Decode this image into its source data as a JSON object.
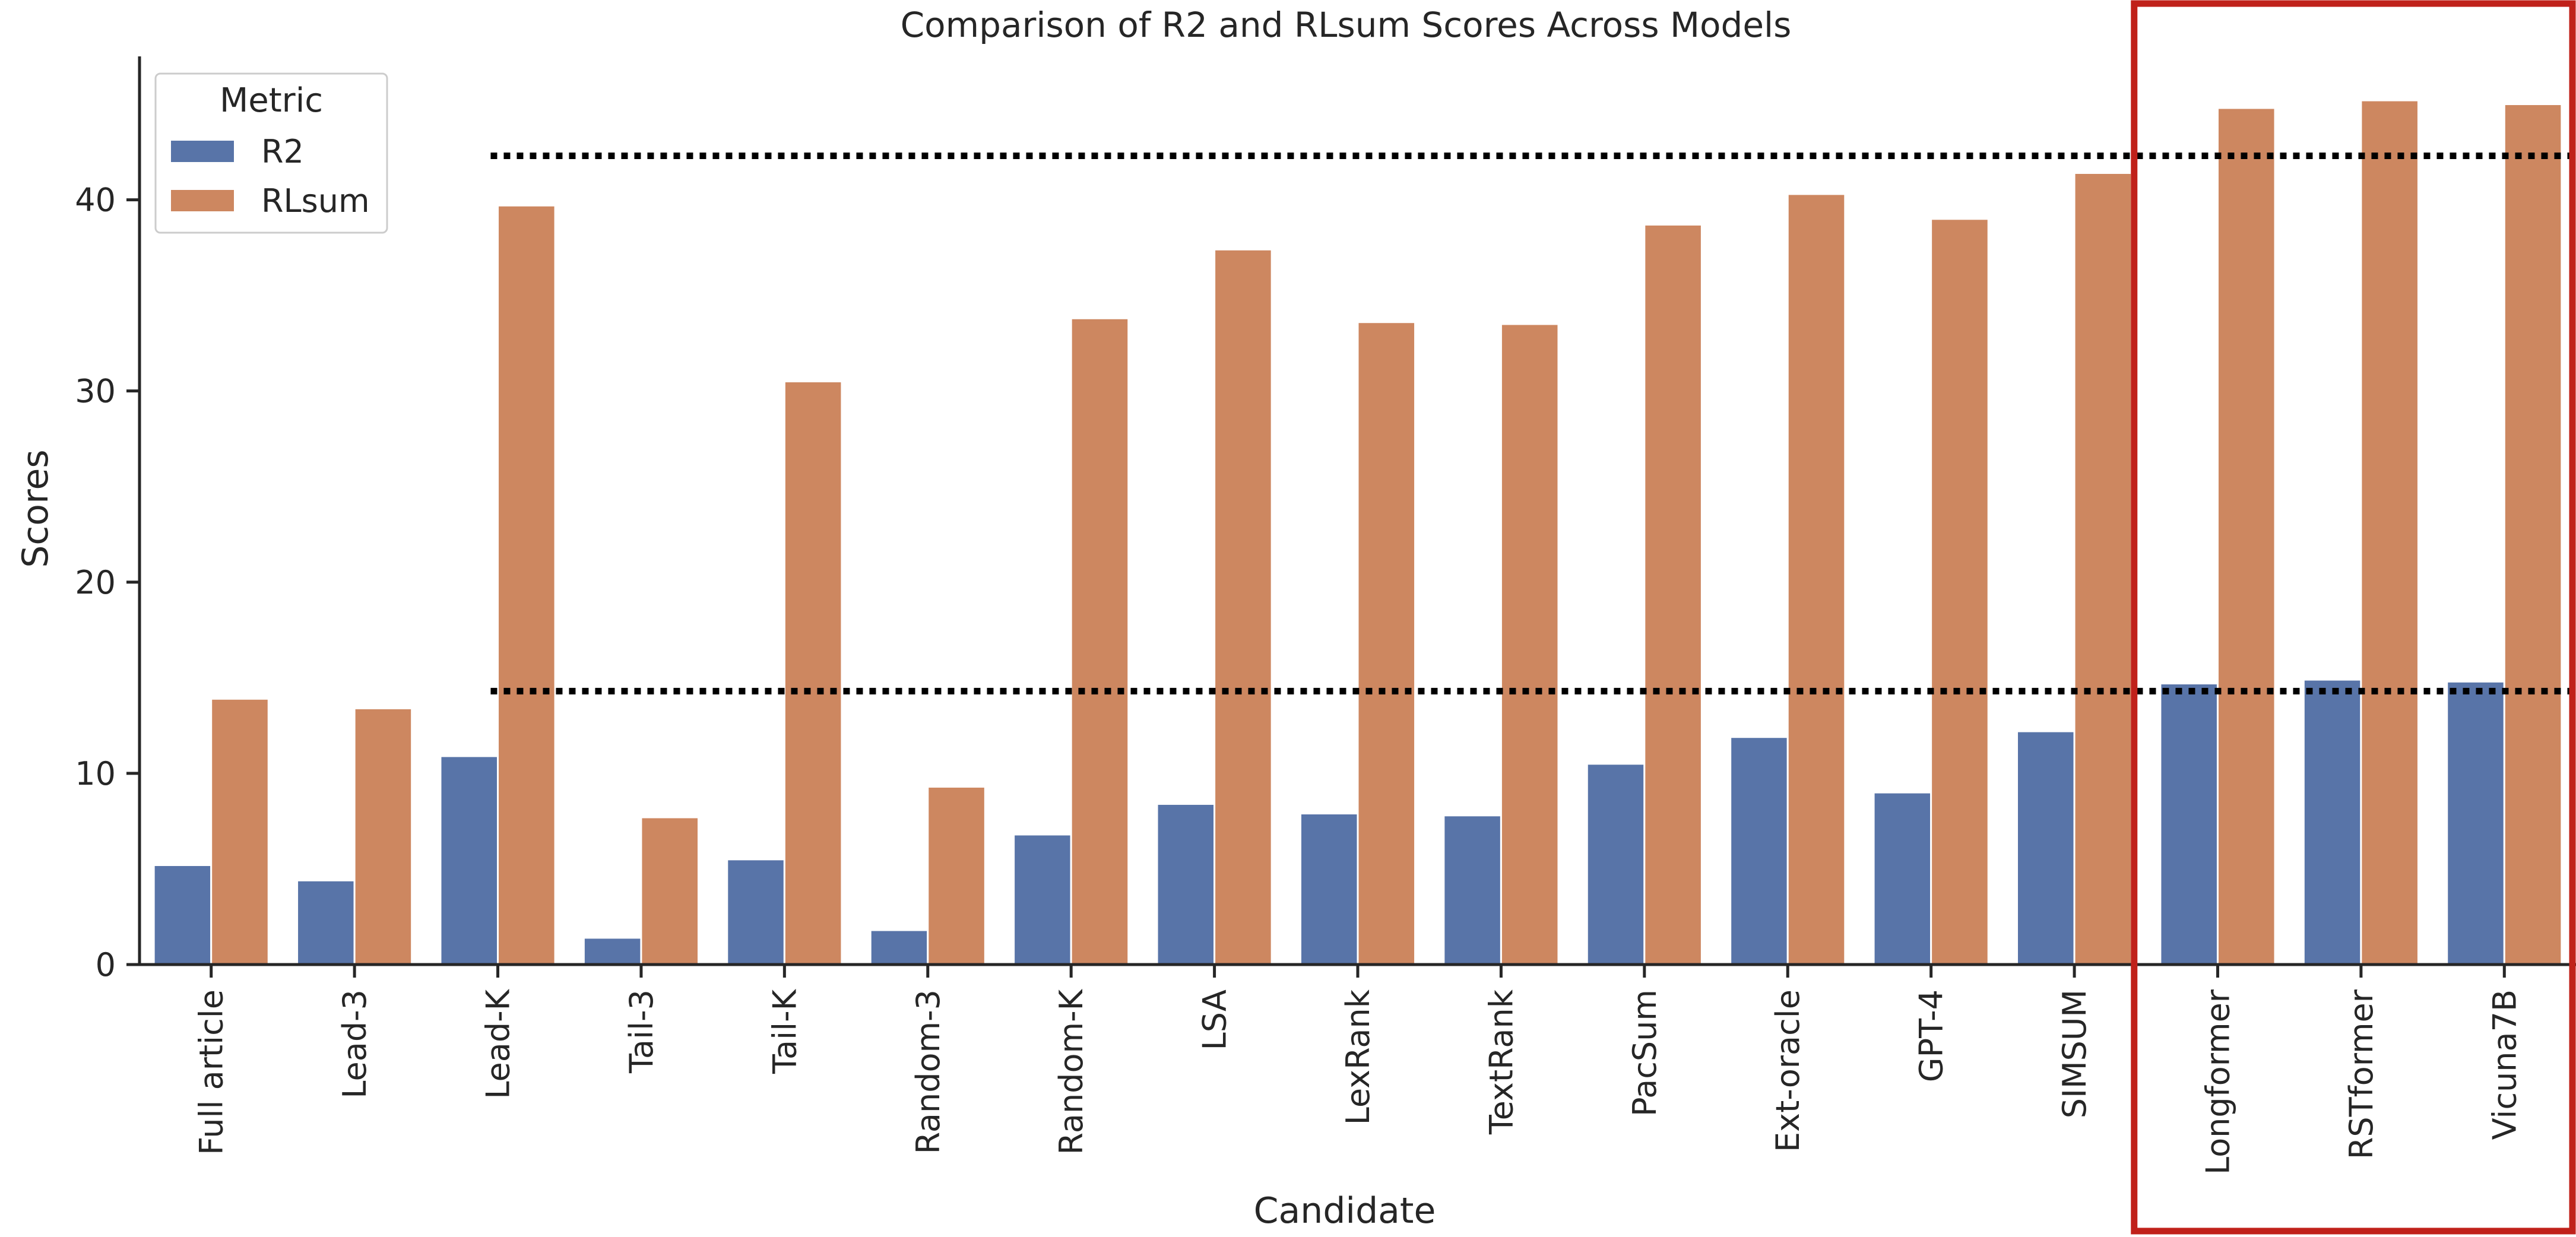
{
  "chart_data": {
    "type": "bar",
    "title": "Comparison of R2 and RLsum Scores Across Models",
    "xlabel": "Candidate",
    "ylabel": "Scores",
    "ylim": [
      0,
      47.5
    ],
    "yticks": [
      0,
      10,
      20,
      30,
      40
    ],
    "grid": false,
    "legend_placement": "top-left",
    "legend_title": "Metric",
    "categories": [
      "Full article",
      "Lead-3",
      "Lead-K",
      "Tail-3",
      "Tail-K",
      "Random-3",
      "Random-K",
      "LSA",
      "LexRank",
      "TextRank",
      "PacSum",
      "Ext-oracle",
      "GPT-4",
      "SIMSUM",
      "Longformer",
      "RSTformer",
      "Vicuna7B"
    ],
    "series": [
      {
        "name": "R2",
        "color": "#5874a8",
        "values": [
          5.2,
          4.4,
          10.9,
          1.4,
          5.5,
          1.8,
          6.8,
          8.4,
          7.9,
          7.8,
          10.5,
          11.9,
          9.0,
          12.2,
          14.7,
          14.9,
          14.8
        ]
      },
      {
        "name": "RLsum",
        "color": "#cd8760",
        "values": [
          13.9,
          13.4,
          39.7,
          7.7,
          30.5,
          9.3,
          33.8,
          37.4,
          33.6,
          33.5,
          38.7,
          40.3,
          39.0,
          41.4,
          44.8,
          45.2,
          45.0
        ]
      }
    ],
    "reference_lines": [
      {
        "y": 42.3,
        "style": "dotted",
        "color": "#000000",
        "from_category_index": 3
      },
      {
        "y": 14.3,
        "style": "dotted",
        "color": "#000000",
        "from_category_index": 3
      }
    ],
    "highlight": {
      "categories": [
        "Longformer",
        "RSTformer",
        "Vicuna7B"
      ],
      "color": "#c0211a"
    }
  }
}
